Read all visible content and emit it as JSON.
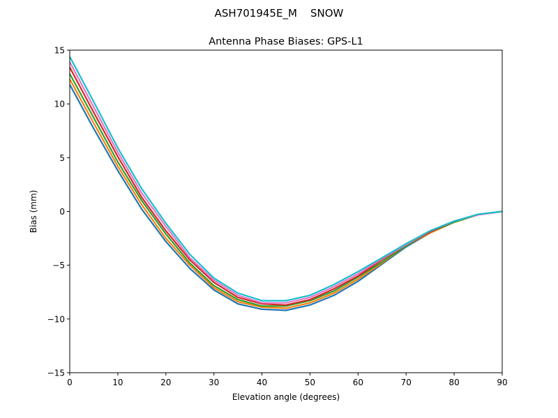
{
  "chart_data": {
    "type": "line",
    "suptitle": "ASH701945E_M    SNOW",
    "title": "Antenna Phase Biases: GPS-L1",
    "xlabel": "Elevation angle (degrees)",
    "ylabel": "Bias (mm)",
    "xlim": [
      0,
      90
    ],
    "ylim": [
      -15,
      15
    ],
    "xticks": [
      "0",
      "10",
      "20",
      "30",
      "40",
      "50",
      "60",
      "70",
      "80",
      "90"
    ],
    "yticks": [
      "−15",
      "−10",
      "−5",
      "0",
      "5",
      "10",
      "15"
    ],
    "grid": false,
    "legend": "none",
    "x": [
      0,
      5,
      10,
      15,
      20,
      25,
      30,
      35,
      40,
      45,
      50,
      55,
      60,
      65,
      70,
      75,
      80,
      85,
      90
    ],
    "series": [
      {
        "color": "#1f77b4",
        "values": [
          11.8,
          7.7,
          3.8,
          0.2,
          -2.8,
          -5.3,
          -7.3,
          -8.6,
          -9.1,
          -9.2,
          -8.7,
          -7.8,
          -6.5,
          -4.9,
          -3.3,
          -2.0,
          -1.0,
          -0.3,
          0.0
        ]
      },
      {
        "color": "#ff7f0e",
        "values": [
          12.3,
          8.2,
          4.2,
          0.6,
          -2.5,
          -5.0,
          -7.1,
          -8.4,
          -8.9,
          -9.0,
          -8.5,
          -7.6,
          -6.3,
          -4.8,
          -3.2,
          -2.0,
          -1.0,
          -0.3,
          0.0
        ]
      },
      {
        "color": "#2ca02c",
        "values": [
          12.8,
          8.7,
          4.6,
          1.0,
          -2.1,
          -4.8,
          -6.9,
          -8.2,
          -8.8,
          -8.8,
          -8.3,
          -7.4,
          -6.1,
          -4.7,
          -3.2,
          -1.9,
          -1.0,
          -0.3,
          0.0
        ]
      },
      {
        "color": "#d62728",
        "values": [
          13.4,
          9.2,
          5.1,
          1.3,
          -1.8,
          -4.5,
          -6.6,
          -8.0,
          -8.6,
          -8.7,
          -8.2,
          -7.2,
          -6.0,
          -4.5,
          -3.1,
          -1.9,
          -0.9,
          -0.3,
          0.0
        ]
      },
      {
        "color": "#e377c2",
        "values": [
          13.9,
          9.7,
          5.5,
          1.7,
          -1.4,
          -4.3,
          -6.4,
          -7.8,
          -8.5,
          -8.5,
          -8.0,
          -7.0,
          -5.8,
          -4.4,
          -3.1,
          -1.8,
          -0.9,
          -0.3,
          0.0
        ]
      },
      {
        "color": "#17becf",
        "values": [
          14.4,
          10.2,
          5.9,
          2.1,
          -1.1,
          -4.0,
          -6.2,
          -7.6,
          -8.3,
          -8.3,
          -7.8,
          -6.8,
          -5.6,
          -4.3,
          -3.0,
          -1.8,
          -0.9,
          -0.25,
          0.0
        ]
      }
    ]
  }
}
